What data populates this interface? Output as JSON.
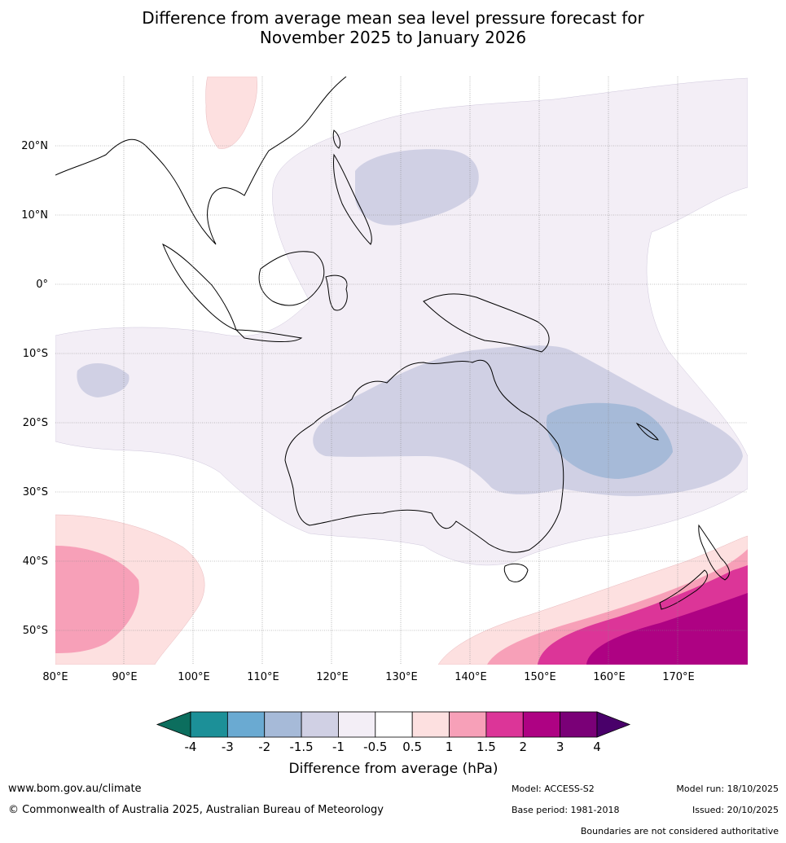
{
  "title_line1": "Difference from average mean sea level pressure forecast for",
  "title_line2": "November 2025 to January 2026",
  "map": {
    "lon_labels": [
      "80°E",
      "90°E",
      "100°E",
      "110°E",
      "120°E",
      "130°E",
      "140°E",
      "150°E",
      "160°E",
      "170°E"
    ],
    "lat_labels": [
      "20°N",
      "10°N",
      "0°",
      "10°S",
      "20°S",
      "30°S",
      "40°S",
      "50°S"
    ],
    "lon_extent": [
      80,
      180
    ],
    "lat_extent": [
      -55,
      30
    ]
  },
  "colorbar": {
    "title": "Difference from average (hPa)",
    "tick_labels": [
      "-4",
      "-3",
      "-2",
      "-1.5",
      "-1",
      "-0.5",
      "0.5",
      "1",
      "1.5",
      "2",
      "3",
      "4"
    ],
    "colors": {
      "under": "#0c6e5e",
      "bins": [
        "#1c9098",
        "#6aaad2",
        "#a6bad8",
        "#d0d0e4",
        "#f3eef6",
        "#ffffff",
        "#fde0e0",
        "#f7a0b8",
        "#dc3598",
        "#ae0283",
        "#7a0077"
      ],
      "over": "#49006a"
    }
  },
  "footer": {
    "url": "www.bom.gov.au/climate",
    "copyright": "© Commonwealth of Australia 2025, Australian Bureau of Meteorology",
    "model": "Model: ACCESS-S2",
    "base_period": "Base period: 1981-2018",
    "model_run": "Model run: 18/10/2025",
    "issued": "Issued: 20/10/2025",
    "disclaimer": "Boundaries are not considered authoritative"
  }
}
